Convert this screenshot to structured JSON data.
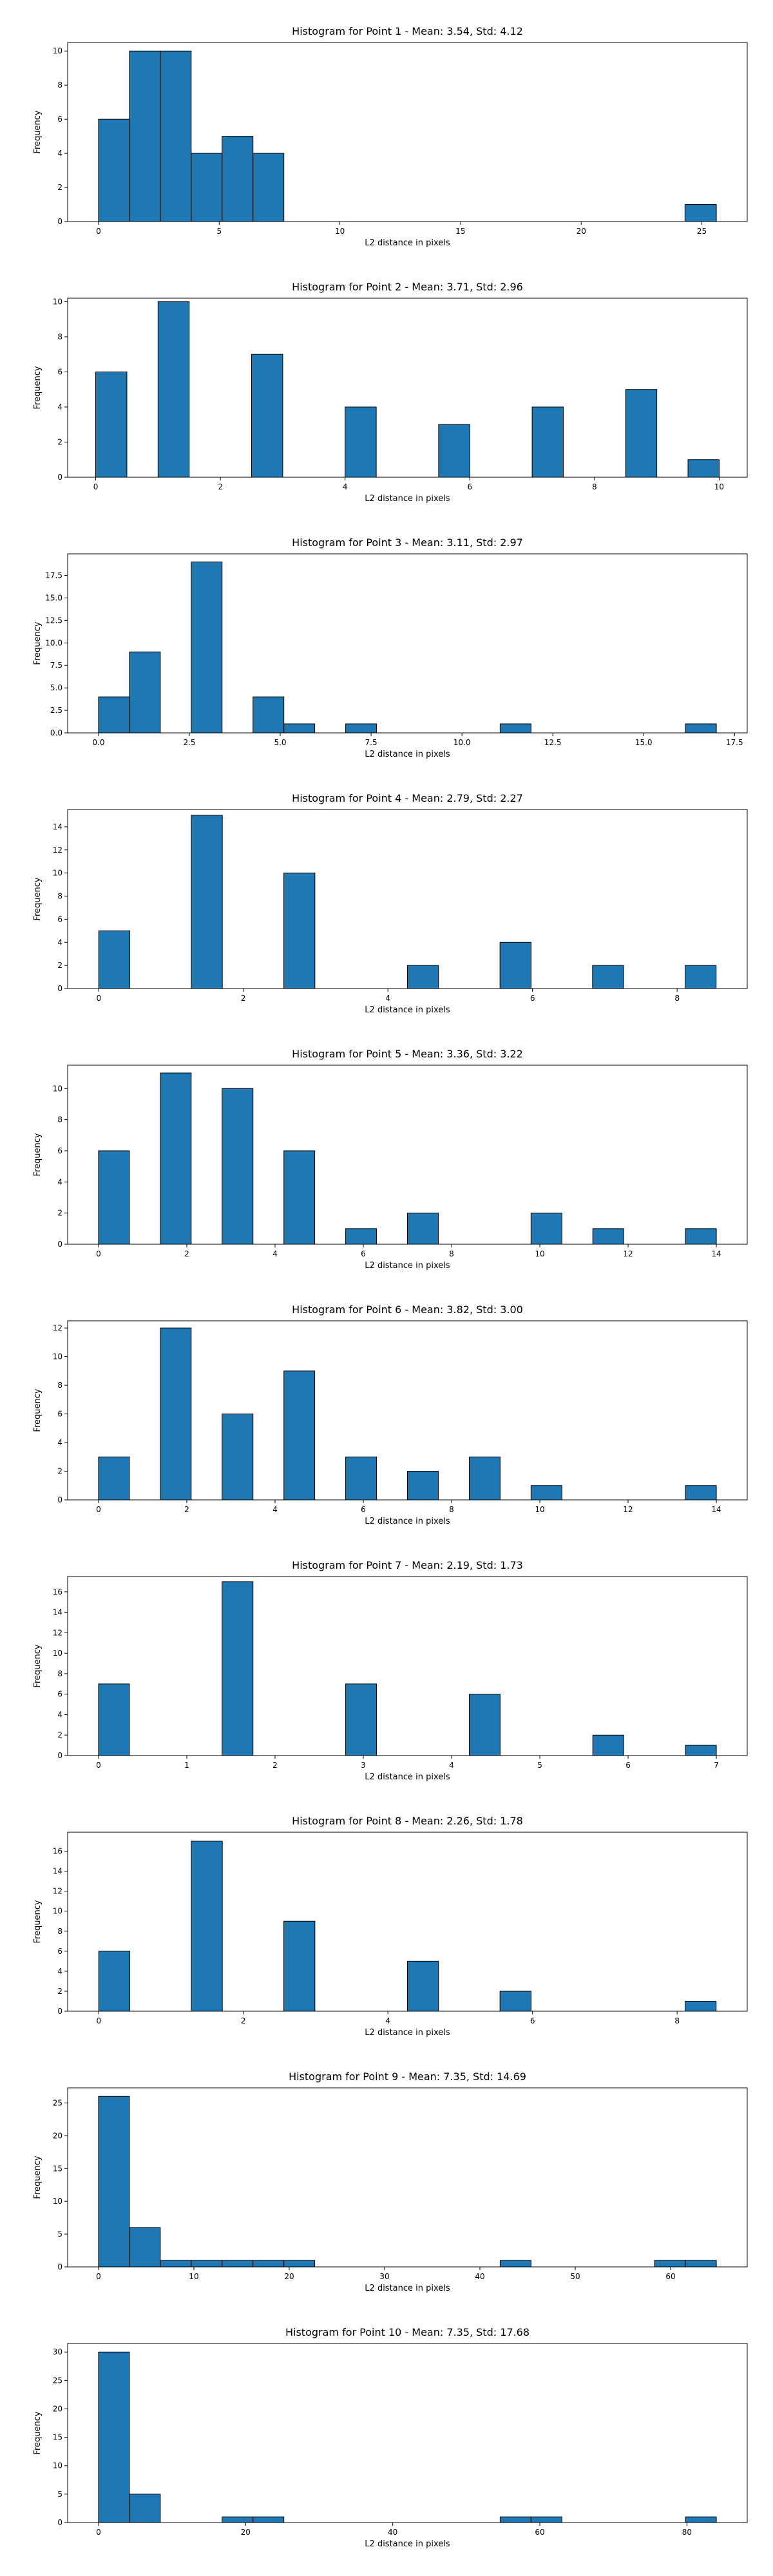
{
  "chart_data": [
    {
      "type": "bar",
      "title": "Histogram for Point 1 - Mean: 3.54, Std: 4.12",
      "xlabel": "L2 distance in pixels",
      "ylabel": "Frequency",
      "bins": [
        {
          "x0": 0.0,
          "x1": 1.28,
          "count": 6
        },
        {
          "x0": 1.28,
          "x1": 2.56,
          "count": 10
        },
        {
          "x0": 2.56,
          "x1": 3.84,
          "count": 10
        },
        {
          "x0": 3.84,
          "x1": 5.12,
          "count": 4
        },
        {
          "x0": 5.12,
          "x1": 6.4,
          "count": 5
        },
        {
          "x0": 6.4,
          "x1": 7.68,
          "count": 4
        },
        {
          "x0": 24.3,
          "x1": 25.6,
          "count": 1
        }
      ],
      "xlim": [
        -1.28,
        26.88
      ],
      "ylim": [
        0,
        10.5
      ],
      "xticks": [
        0,
        5,
        10,
        15,
        20,
        25
      ],
      "yticks": [
        0,
        2,
        4,
        6,
        8,
        10
      ],
      "yticklabels": [
        "0",
        "2",
        "4",
        "6",
        "8",
        "10"
      ]
    },
    {
      "type": "bar",
      "title": "Histogram for Point 2 - Mean: 3.71, Std: 2.96",
      "xlabel": "L2 distance in pixels",
      "ylabel": "Frequency",
      "bins": [
        {
          "x0": 0.0,
          "x1": 0.5,
          "count": 6
        },
        {
          "x0": 1.0,
          "x1": 1.5,
          "count": 10
        },
        {
          "x0": 2.5,
          "x1": 3.0,
          "count": 7
        },
        {
          "x0": 4.0,
          "x1": 4.5,
          "count": 4
        },
        {
          "x0": 5.5,
          "x1": 6.0,
          "count": 3
        },
        {
          "x0": 7.0,
          "x1": 7.5,
          "count": 4
        },
        {
          "x0": 8.5,
          "x1": 9.0,
          "count": 5
        },
        {
          "x0": 9.5,
          "x1": 10.0,
          "count": 1
        }
      ],
      "xlim": [
        -0.45,
        10.45
      ],
      "ylim": [
        0,
        10.2
      ],
      "xticks": [
        0,
        2,
        4,
        6,
        8,
        10
      ],
      "yticks": [
        0,
        2,
        4,
        6,
        8,
        10
      ],
      "yticklabels": [
        "0",
        "2",
        "4",
        "6",
        "8",
        "10"
      ]
    },
    {
      "type": "bar",
      "title": "Histogram for Point 3 - Mean: 3.11, Std: 2.97",
      "xlabel": "L2 distance in pixels",
      "ylabel": "Frequency",
      "bins": [
        {
          "x0": 0.0,
          "x1": 0.85,
          "count": 4
        },
        {
          "x0": 0.85,
          "x1": 1.7,
          "count": 9
        },
        {
          "x0": 2.55,
          "x1": 3.4,
          "count": 19
        },
        {
          "x0": 4.25,
          "x1": 5.1,
          "count": 4
        },
        {
          "x0": 5.1,
          "x1": 5.95,
          "count": 1
        },
        {
          "x0": 6.8,
          "x1": 7.65,
          "count": 1
        },
        {
          "x0": 11.05,
          "x1": 11.9,
          "count": 1
        },
        {
          "x0": 16.15,
          "x1": 17.0,
          "count": 1
        }
      ],
      "xlim": [
        -0.85,
        17.85
      ],
      "ylim": [
        0,
        19.9
      ],
      "xticks": [
        0.0,
        2.5,
        5.0,
        7.5,
        10.0,
        12.5,
        15.0,
        17.5
      ],
      "xticklabels": [
        "0.0",
        "2.5",
        "5.0",
        "7.5",
        "10.0",
        "12.5",
        "15.0",
        "17.5"
      ],
      "yticks": [
        0,
        2.5,
        5,
        7.5,
        10,
        12.5,
        15,
        17.5
      ],
      "yticklabels": [
        "0.0",
        "2.5",
        "5.0",
        "7.5",
        "10.0",
        "12.5",
        "15.0",
        "17.5"
      ]
    },
    {
      "type": "bar",
      "title": "Histogram for Point 4 - Mean: 2.79, Std: 2.27",
      "xlabel": "L2 distance in pixels",
      "ylabel": "Frequency",
      "bins": [
        {
          "x0": 0.0,
          "x1": 0.43,
          "count": 5
        },
        {
          "x0": 1.28,
          "x1": 1.71,
          "count": 15
        },
        {
          "x0": 2.56,
          "x1": 2.99,
          "count": 10
        },
        {
          "x0": 4.27,
          "x1": 4.7,
          "count": 2
        },
        {
          "x0": 5.55,
          "x1": 5.98,
          "count": 4
        },
        {
          "x0": 6.83,
          "x1": 7.26,
          "count": 2
        },
        {
          "x0": 8.11,
          "x1": 8.54,
          "count": 2
        }
      ],
      "xlim": [
        -0.43,
        8.97
      ],
      "ylim": [
        0,
        15.5
      ],
      "xticks": [
        0,
        2,
        4,
        6,
        8
      ],
      "yticks": [
        0,
        2,
        4,
        6,
        8,
        10,
        12,
        14
      ],
      "yticklabels": [
        "0",
        "2",
        "4",
        "6",
        "8",
        "10",
        "12",
        "14"
      ]
    },
    {
      "type": "bar",
      "title": "Histogram for Point 5 - Mean: 3.36, Std: 3.22",
      "xlabel": "L2 distance in pixels",
      "ylabel": "Frequency",
      "bins": [
        {
          "x0": 0.0,
          "x1": 0.7,
          "count": 6
        },
        {
          "x0": 1.4,
          "x1": 2.1,
          "count": 11
        },
        {
          "x0": 2.8,
          "x1": 3.5,
          "count": 10
        },
        {
          "x0": 4.2,
          "x1": 4.9,
          "count": 6
        },
        {
          "x0": 5.6,
          "x1": 6.3,
          "count": 1
        },
        {
          "x0": 7.0,
          "x1": 7.7,
          "count": 2
        },
        {
          "x0": 9.8,
          "x1": 10.5,
          "count": 2
        },
        {
          "x0": 11.2,
          "x1": 11.9,
          "count": 1
        },
        {
          "x0": 13.3,
          "x1": 14.0,
          "count": 1
        }
      ],
      "xlim": [
        -0.7,
        14.7
      ],
      "ylim": [
        0,
        11.5
      ],
      "xticks": [
        0,
        2,
        4,
        6,
        8,
        10,
        12,
        14
      ],
      "yticks": [
        0,
        2,
        4,
        6,
        8,
        10
      ],
      "yticklabels": [
        "0",
        "2",
        "4",
        "6",
        "8",
        "10"
      ]
    },
    {
      "type": "bar",
      "title": "Histogram for Point 6 - Mean: 3.82, Std: 3.00",
      "xlabel": "L2 distance in pixels",
      "ylabel": "Frequency",
      "bins": [
        {
          "x0": 0.0,
          "x1": 0.7,
          "count": 3
        },
        {
          "x0": 1.4,
          "x1": 2.1,
          "count": 12
        },
        {
          "x0": 2.8,
          "x1": 3.5,
          "count": 6
        },
        {
          "x0": 4.2,
          "x1": 4.9,
          "count": 9
        },
        {
          "x0": 5.6,
          "x1": 6.3,
          "count": 3
        },
        {
          "x0": 7.0,
          "x1": 7.7,
          "count": 2
        },
        {
          "x0": 8.4,
          "x1": 9.1,
          "count": 3
        },
        {
          "x0": 9.8,
          "x1": 10.5,
          "count": 1
        },
        {
          "x0": 13.3,
          "x1": 14.0,
          "count": 1
        }
      ],
      "xlim": [
        -0.7,
        14.7
      ],
      "ylim": [
        0,
        12.5
      ],
      "xticks": [
        0,
        2,
        4,
        6,
        8,
        10,
        12,
        14
      ],
      "yticks": [
        0,
        2,
        4,
        6,
        8,
        10,
        12
      ],
      "yticklabels": [
        "0",
        "2",
        "4",
        "6",
        "8",
        "10",
        "12"
      ]
    },
    {
      "type": "bar",
      "title": "Histogram for Point 7 - Mean: 2.19, Std: 1.73",
      "xlabel": "L2 distance in pixels",
      "ylabel": "Frequency",
      "bins": [
        {
          "x0": 0.0,
          "x1": 0.35,
          "count": 7
        },
        {
          "x0": 1.4,
          "x1": 1.75,
          "count": 17
        },
        {
          "x0": 2.8,
          "x1": 3.15,
          "count": 7
        },
        {
          "x0": 4.2,
          "x1": 4.55,
          "count": 6
        },
        {
          "x0": 5.6,
          "x1": 5.95,
          "count": 2
        },
        {
          "x0": 6.65,
          "x1": 7.0,
          "count": 1
        }
      ],
      "xlim": [
        -0.35,
        7.35
      ],
      "ylim": [
        0,
        17.5
      ],
      "xticks": [
        0,
        1,
        2,
        3,
        4,
        5,
        6,
        7
      ],
      "yticks": [
        0,
        2,
        4,
        6,
        8,
        10,
        12,
        14,
        16
      ],
      "yticklabels": [
        "0",
        "2",
        "4",
        "6",
        "8",
        "10",
        "12",
        "14",
        "16"
      ]
    },
    {
      "type": "bar",
      "title": "Histogram for Point 8 - Mean: 2.26, Std: 1.78",
      "xlabel": "L2 distance in pixels",
      "ylabel": "Frequency",
      "bins": [
        {
          "x0": 0.0,
          "x1": 0.43,
          "count": 6
        },
        {
          "x0": 1.28,
          "x1": 1.71,
          "count": 17
        },
        {
          "x0": 2.56,
          "x1": 2.99,
          "count": 9
        },
        {
          "x0": 4.27,
          "x1": 4.7,
          "count": 5
        },
        {
          "x0": 5.55,
          "x1": 5.98,
          "count": 2
        },
        {
          "x0": 8.11,
          "x1": 8.54,
          "count": 1
        }
      ],
      "xlim": [
        -0.43,
        8.97
      ],
      "ylim": [
        0,
        17.9
      ],
      "xticks": [
        0,
        2,
        4,
        6,
        8
      ],
      "yticks": [
        0,
        2,
        4,
        6,
        8,
        10,
        12,
        14,
        16
      ],
      "yticklabels": [
        "0",
        "2",
        "4",
        "6",
        "8",
        "10",
        "12",
        "14",
        "16"
      ]
    },
    {
      "type": "bar",
      "title": "Histogram for Point 9 - Mean: 7.35, Std: 14.69",
      "xlabel": "L2 distance in pixels",
      "ylabel": "Frequency",
      "bins": [
        {
          "x0": 0.0,
          "x1": 3.24,
          "count": 26
        },
        {
          "x0": 3.24,
          "x1": 6.48,
          "count": 6
        },
        {
          "x0": 6.48,
          "x1": 9.72,
          "count": 1
        },
        {
          "x0": 9.72,
          "x1": 12.96,
          "count": 1
        },
        {
          "x0": 12.96,
          "x1": 16.2,
          "count": 1
        },
        {
          "x0": 16.2,
          "x1": 19.44,
          "count": 1
        },
        {
          "x0": 19.44,
          "x1": 22.68,
          "count": 1
        },
        {
          "x0": 42.12,
          "x1": 45.36,
          "count": 1
        },
        {
          "x0": 58.32,
          "x1": 61.56,
          "count": 1
        },
        {
          "x0": 61.56,
          "x1": 64.8,
          "count": 1
        }
      ],
      "xlim": [
        -3.24,
        68.04
      ],
      "ylim": [
        0,
        27.3
      ],
      "xticks": [
        0,
        10,
        20,
        30,
        40,
        50,
        60
      ],
      "yticks": [
        0,
        5,
        10,
        15,
        20,
        25
      ],
      "yticklabels": [
        "0",
        "5",
        "10",
        "15",
        "20",
        "25"
      ]
    },
    {
      "type": "bar",
      "title": "Histogram for Point 10 - Mean: 7.35, Std: 17.68",
      "xlabel": "L2 distance in pixels",
      "ylabel": "Frequency",
      "bins": [
        {
          "x0": 0.0,
          "x1": 4.2,
          "count": 30
        },
        {
          "x0": 4.2,
          "x1": 8.4,
          "count": 5
        },
        {
          "x0": 16.8,
          "x1": 21.0,
          "count": 1
        },
        {
          "x0": 21.0,
          "x1": 25.2,
          "count": 1
        },
        {
          "x0": 54.6,
          "x1": 58.8,
          "count": 1
        },
        {
          "x0": 58.8,
          "x1": 63.0,
          "count": 1
        },
        {
          "x0": 79.8,
          "x1": 84.0,
          "count": 1
        }
      ],
      "xlim": [
        -4.2,
        88.2
      ],
      "ylim": [
        0,
        31.5
      ],
      "xticks": [
        0,
        20,
        40,
        60,
        80
      ],
      "yticks": [
        0,
        5,
        10,
        15,
        20,
        25,
        30
      ],
      "yticklabels": [
        "0",
        "5",
        "10",
        "15",
        "20",
        "25",
        "30"
      ]
    }
  ],
  "style": {
    "bar_color": "#1f77b4",
    "edge_color": "#000000",
    "grid": false,
    "legend": "none"
  }
}
